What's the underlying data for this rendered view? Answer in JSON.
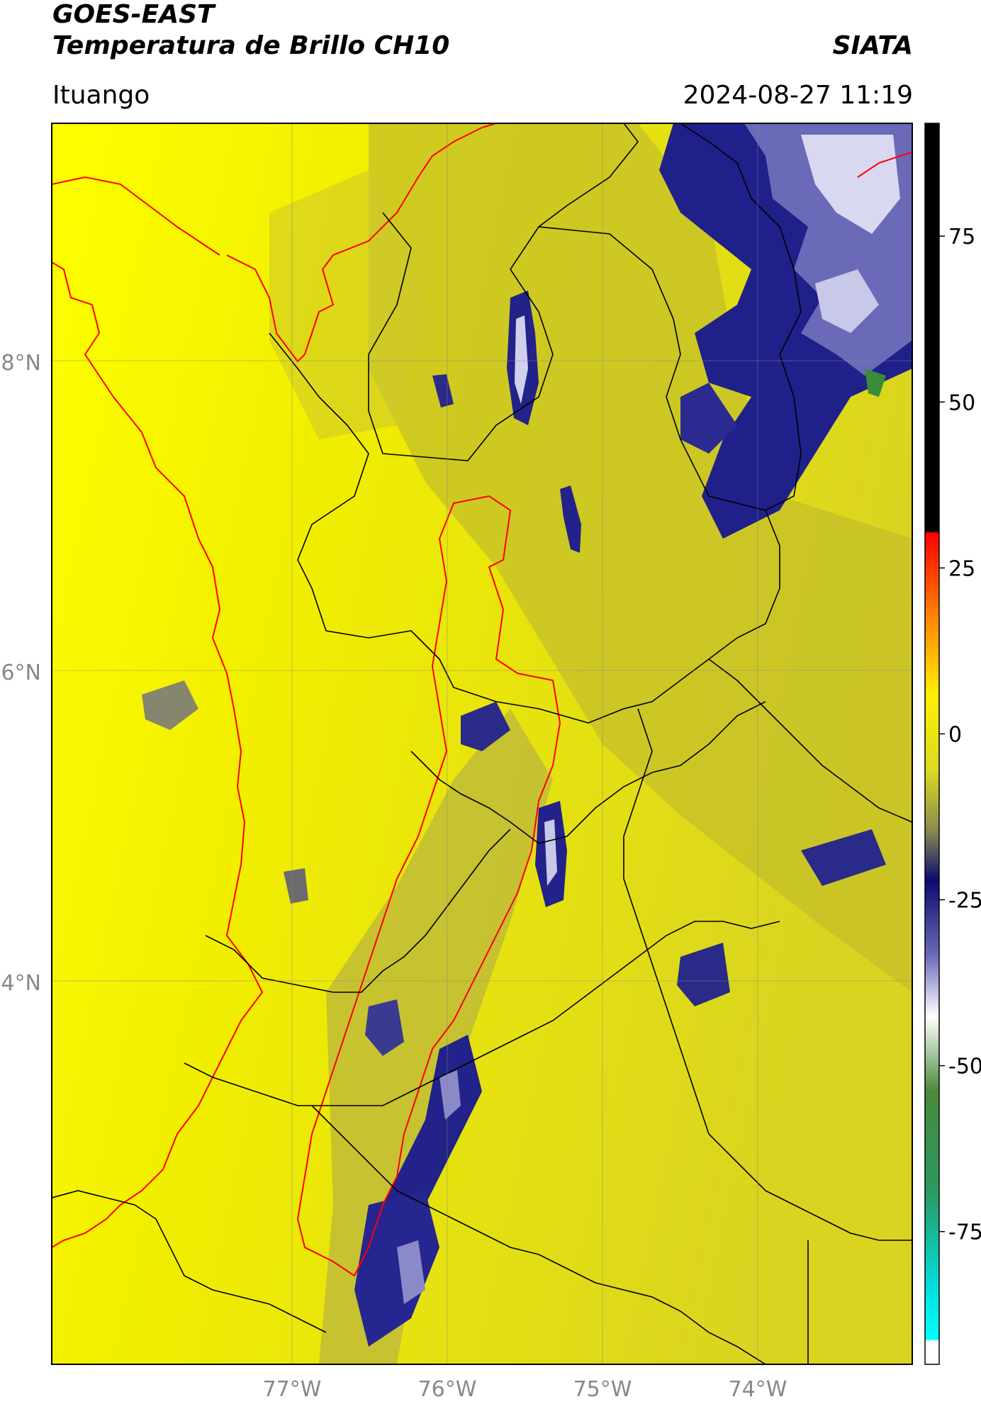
{
  "header": {
    "title_line1": "GOES-EAST",
    "title_line2": "Temperatura de Brillo CH10",
    "organization": "SIATA",
    "location": "Ituango",
    "datetime": "2024-08-27 11:19"
  },
  "map": {
    "lat_labels": [
      "8°N",
      "6°N",
      "4°N"
    ],
    "lon_labels": [
      "77°W",
      "76°W",
      "75°W",
      "74°W"
    ],
    "colors": {
      "background_yellow": "#e6e000",
      "bright_yellow": "#ffff00",
      "cloud_navy": "#1a1a78",
      "cloud_light": "#c8c8e8",
      "borders": "#000000",
      "coast_and_basin": "#ff0000"
    }
  },
  "colorbar": {
    "ticks": [
      "75",
      "50",
      "25",
      "0",
      "-25",
      "-50",
      "-75"
    ],
    "tick_values": [
      75,
      50,
      25,
      0,
      -25,
      -50,
      -75
    ],
    "range": [
      -95,
      92
    ]
  }
}
